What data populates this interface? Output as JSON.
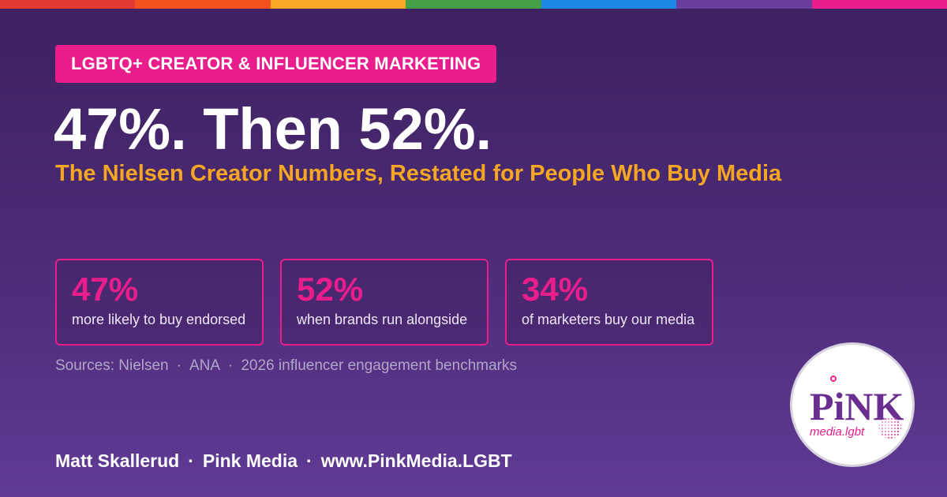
{
  "pride_colors": [
    "#e53935",
    "#f4511e",
    "#f9a825",
    "#43a047",
    "#1e88e5",
    "#6a3fa0",
    "#e91e8c"
  ],
  "tag": {
    "label": "LGBTQ+ CREATOR & INFLUENCER MARKETING",
    "color": "#e91e8c"
  },
  "headline": "47%. Then 52%.",
  "subheadline": "The Nielsen Creator Numbers, Restated for People Who Buy Media",
  "stats": [
    {
      "value": "47%",
      "label": "more likely to buy endorsed"
    },
    {
      "value": "52%",
      "label": "when brands run alongside"
    },
    {
      "value": "34%",
      "label": "of marketers buy our media"
    }
  ],
  "sources": {
    "prefix": "Sources: Nielsen",
    "separator": "·",
    "items": [
      "ANA",
      "2026 influencer engagement benchmarks"
    ]
  },
  "footer": {
    "author": "Matt Skallerud",
    "separator": "·",
    "company": "Pink Media",
    "url": "www.PinkMedia.LGBT"
  },
  "logo": {
    "wordmark": "PiNK",
    "domain": "media.lgbt",
    "icon": "disco-ball-icon",
    "colors": {
      "wordmark": "#6a2e91",
      "domain": "#e91e8c"
    }
  },
  "colors": {
    "accent": "#e91e8c",
    "highlight": "#f5a623",
    "background": "#4a2a73"
  }
}
